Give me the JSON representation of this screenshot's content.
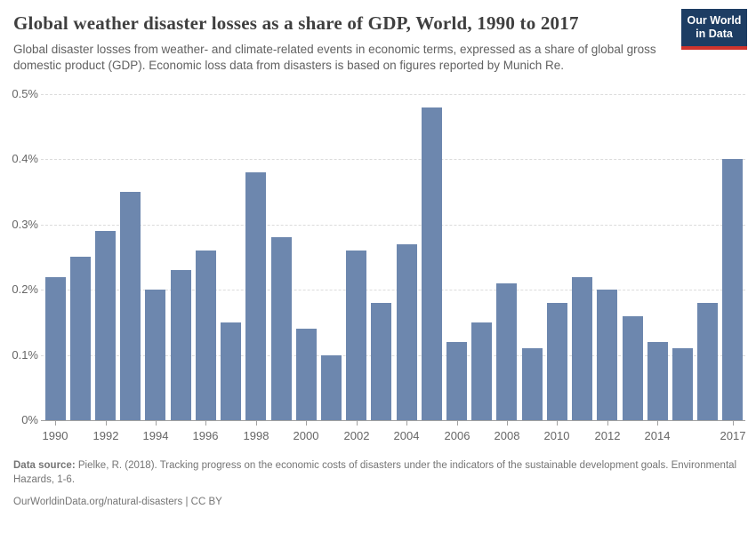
{
  "header": {
    "title": "Global weather disaster losses as a share of GDP, World, 1990 to 2017",
    "subtitle": "Global disaster losses from weather- and climate-related events in economic terms, expressed as a share of global gross domestic product (GDP). Economic loss data from disasters is based on figures reported by Munich Re."
  },
  "logo": {
    "line1": "Our World",
    "line2": "in Data"
  },
  "chart_data": {
    "type": "bar",
    "title": "Global weather disaster losses as a share of GDP, World, 1990 to 2017",
    "unit": "% of GDP",
    "categories": [
      1990,
      1991,
      1992,
      1993,
      1994,
      1995,
      1996,
      1997,
      1998,
      1999,
      2000,
      2001,
      2002,
      2003,
      2004,
      2005,
      2006,
      2007,
      2008,
      2009,
      2010,
      2011,
      2012,
      2013,
      2014,
      2015,
      2016,
      2017
    ],
    "values": [
      0.22,
      0.25,
      0.29,
      0.35,
      0.2,
      0.23,
      0.26,
      0.15,
      0.38,
      0.28,
      0.14,
      0.1,
      0.26,
      0.18,
      0.27,
      0.48,
      0.12,
      0.15,
      0.21,
      0.11,
      0.18,
      0.22,
      0.2,
      0.16,
      0.12,
      0.11,
      0.18,
      0.4
    ],
    "ylim": [
      0,
      0.5
    ],
    "yticks": [
      {
        "value": 0,
        "label": "0%"
      },
      {
        "value": 0.1,
        "label": "0.1%"
      },
      {
        "value": 0.2,
        "label": "0.2%"
      },
      {
        "value": 0.3,
        "label": "0.3%"
      },
      {
        "value": 0.4,
        "label": "0.4%"
      },
      {
        "value": 0.5,
        "label": "0.5%"
      }
    ],
    "xtick_labels": [
      "1990",
      "1992",
      "1994",
      "1996",
      "1998",
      "2000",
      "2002",
      "2004",
      "2006",
      "2008",
      "2010",
      "2012",
      "2014",
      "2017"
    ],
    "grid": "dashed-horizontal",
    "legend": "none",
    "bar_color": "#6d87ae"
  },
  "footer": {
    "source_label": "Data source:",
    "source_text": "Pielke, R. (2018). Tracking progress on the economic costs of disasters under the indicators of the sustainable development goals. Environmental Hazards, 1-6.",
    "url": "OurWorldinData.org/natural-disasters",
    "separator": " | ",
    "license": "CC BY"
  },
  "colors": {
    "bar": "#6d87ae",
    "logo_background": "#1d3d63",
    "logo_stripe": "#d0342c",
    "title_text": "#3f3f3f",
    "subtitle_text": "#616161",
    "axis_line": "#a1a1a1",
    "tick_label": "#666666",
    "gridline": "#dcdcdc",
    "footer_text": "#757575"
  }
}
